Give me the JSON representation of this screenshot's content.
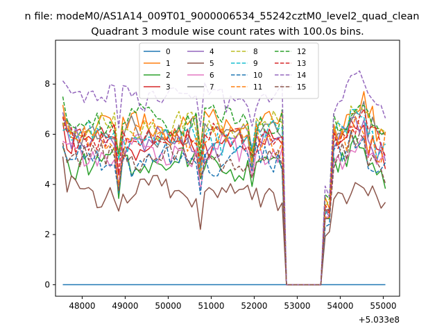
{
  "chart_data": {
    "type": "line",
    "suptitle": "n file: modeM0/AS1A14_009T01_9000006534_55242cztM0_level2_quad_clean",
    "title": "Quadrant 3 module wise count rates with 100.0s bins.",
    "xlabel": "",
    "ylabel": "",
    "x_offset_label": "+5.033e8",
    "xlim": [
      47380,
      55380
    ],
    "ylim": [
      -0.46,
      9.75
    ],
    "xticks": [
      48000,
      49000,
      50000,
      51000,
      52000,
      53000,
      54000,
      55000
    ],
    "yticks": [
      0,
      2,
      4,
      6,
      8
    ],
    "gap": {
      "start": 52650,
      "end": 53650
    },
    "x": {
      "start": 47550,
      "end": 55050,
      "step": 100
    },
    "legend": {
      "location": "upper-center",
      "columns": 4
    },
    "series": [
      {
        "name": "0",
        "color": "#1f77b4",
        "dash": false,
        "level": 0.0,
        "seed": 0
      },
      {
        "name": "1",
        "color": "#ff7f0e",
        "dash": false,
        "level": 6.4,
        "seed": 1
      },
      {
        "name": "2",
        "color": "#2ca02c",
        "dash": false,
        "level": 4.8,
        "seed": 2
      },
      {
        "name": "3",
        "color": "#d62728",
        "dash": false,
        "level": 5.6,
        "seed": 3
      },
      {
        "name": "4",
        "color": "#9467bd",
        "dash": false,
        "level": 5.7,
        "seed": 4
      },
      {
        "name": "5",
        "color": "#8c564b",
        "dash": false,
        "level": 3.7,
        "seed": 5
      },
      {
        "name": "6",
        "color": "#e377c2",
        "dash": false,
        "level": 5.3,
        "seed": 6
      },
      {
        "name": "7",
        "color": "#7f7f7f",
        "dash": false,
        "level": 6.1,
        "seed": 7
      },
      {
        "name": "8",
        "color": "#bcbd22",
        "dash": true,
        "level": 6.3,
        "seed": 8
      },
      {
        "name": "9",
        "color": "#17becf",
        "dash": true,
        "level": 5.9,
        "seed": 9
      },
      {
        "name": "10",
        "color": "#1f77b4",
        "dash": true,
        "level": 5.0,
        "seed": 10
      },
      {
        "name": "11",
        "color": "#ff7f0e",
        "dash": true,
        "level": 5.9,
        "seed": 11
      },
      {
        "name": "12",
        "color": "#2ca02c",
        "dash": true,
        "level": 6.6,
        "seed": 12
      },
      {
        "name": "13",
        "color": "#d62728",
        "dash": true,
        "level": 5.9,
        "seed": 13
      },
      {
        "name": "14",
        "color": "#9467bd",
        "dash": true,
        "level": 7.5,
        "seed": 14
      },
      {
        "name": "15",
        "color": "#8c564b",
        "dash": true,
        "level": 5.0,
        "seed": 15
      }
    ]
  }
}
